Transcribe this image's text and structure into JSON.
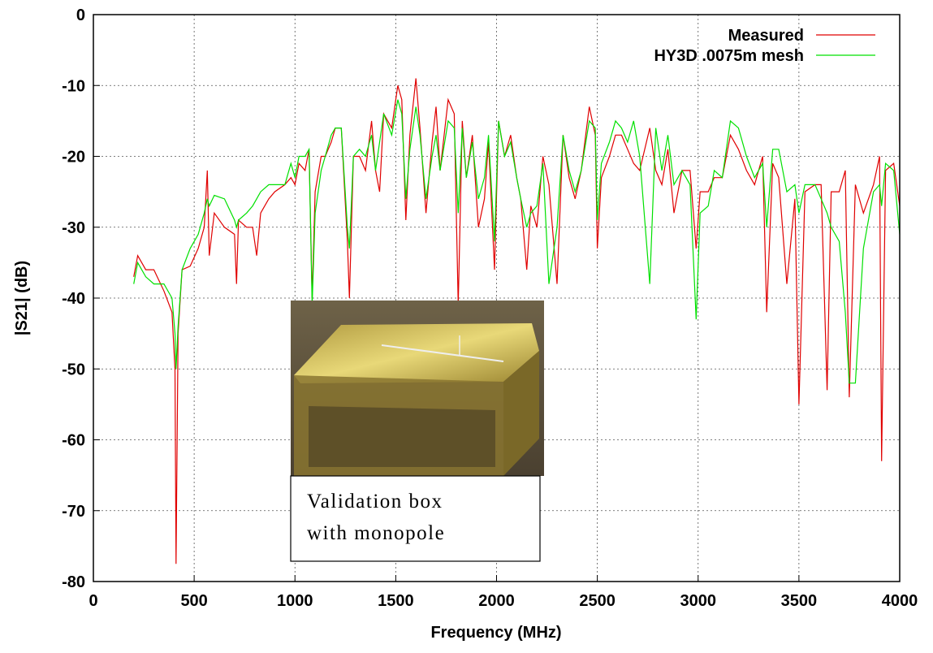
{
  "chart_data": {
    "type": "line",
    "x_label": "Frequency (MHz)",
    "y_label": "|S21| (dB)",
    "xlim": [
      0,
      4000
    ],
    "xticks": [
      0,
      500,
      1000,
      1500,
      2000,
      2500,
      3000,
      3500,
      4000
    ],
    "ylim": [
      -80,
      0
    ],
    "yticks": [
      -80,
      -70,
      -60,
      -50,
      -40,
      -30,
      -20,
      -10,
      0
    ],
    "grid": true,
    "legend": "top-right",
    "x": [
      200,
      220,
      260,
      300,
      350,
      390,
      405,
      410,
      420,
      440,
      480,
      520,
      550,
      565,
      575,
      600,
      650,
      700,
      710,
      720,
      760,
      790,
      810,
      830,
      870,
      900,
      950,
      980,
      1000,
      1020,
      1050,
      1070,
      1085,
      1100,
      1130,
      1150,
      1180,
      1200,
      1230,
      1260,
      1270,
      1290,
      1320,
      1350,
      1380,
      1400,
      1420,
      1440,
      1480,
      1510,
      1530,
      1550,
      1570,
      1600,
      1620,
      1650,
      1680,
      1700,
      1720,
      1760,
      1790,
      1810,
      1830,
      1850,
      1880,
      1910,
      1940,
      1960,
      1990,
      2010,
      2040,
      2070,
      2100,
      2120,
      2150,
      2170,
      2200,
      2230,
      2260,
      2300,
      2330,
      2360,
      2390,
      2420,
      2460,
      2490,
      2500,
      2520,
      2560,
      2590,
      2620,
      2650,
      2680,
      2710,
      2760,
      2790,
      2820,
      2850,
      2880,
      2920,
      2960,
      2990,
      3010,
      3050,
      3080,
      3120,
      3160,
      3200,
      3240,
      3280,
      3320,
      3340,
      3370,
      3400,
      3440,
      3480,
      3500,
      3530,
      3580,
      3610,
      3640,
      3660,
      3700,
      3730,
      3750,
      3780,
      3820,
      3870,
      3900,
      3910,
      3930,
      3970,
      4000
    ],
    "series": [
      {
        "name": "Measured",
        "color": "#e00000",
        "values": [
          -37,
          -34,
          -36,
          -36,
          -39,
          -42,
          -50,
          -77.5,
          -45,
          -36,
          -35.5,
          -33,
          -30,
          -22,
          -34,
          -28,
          -30,
          -31,
          -38,
          -29,
          -30,
          -30,
          -34,
          -28,
          -26,
          -25,
          -24,
          -23,
          -24,
          -21,
          -22,
          -19,
          -40,
          -25,
          -20,
          -20,
          -18,
          -16,
          -16,
          -32,
          -40,
          -20,
          -20,
          -22,
          -15,
          -22,
          -25,
          -14,
          -16,
          -10,
          -12,
          -29,
          -17,
          -9,
          -16,
          -28,
          -18,
          -13,
          -22,
          -12,
          -14,
          -41,
          -15,
          -23,
          -17,
          -30,
          -26,
          -18,
          -36,
          -15,
          -20,
          -17,
          -23,
          -26,
          -36,
          -27,
          -30,
          -20,
          -24,
          -38,
          -17,
          -23,
          -26,
          -22,
          -13,
          -17,
          -33,
          -23,
          -20,
          -17,
          -17,
          -19,
          -21,
          -22,
          -16,
          -22,
          -24,
          -19,
          -28,
          -22,
          -22,
          -33,
          -25,
          -25,
          -23,
          -23,
          -17,
          -19,
          -22,
          -24,
          -20,
          -42,
          -21,
          -23,
          -38,
          -26,
          -55,
          -25,
          -24,
          -24,
          -53,
          -25,
          -25,
          -22,
          -54,
          -24,
          -28,
          -24,
          -20,
          -63,
          -22,
          -21,
          -27
        ]
      },
      {
        "name": "HY3D .0075m mesh",
        "color": "#00e000",
        "values": [
          -38,
          -35,
          -37,
          -38,
          -38,
          -40,
          -45,
          -50,
          -44,
          -36,
          -33,
          -31,
          -28,
          -26,
          -27,
          -25.5,
          -26,
          -29,
          -30,
          -29,
          -28,
          -27,
          -26,
          -25,
          -24,
          -24,
          -24,
          -21,
          -23,
          -20,
          -20,
          -19,
          -41,
          -28,
          -22,
          -20,
          -17,
          -16,
          -16,
          -30,
          -33,
          -20,
          -19,
          -20,
          -17,
          -22,
          -18,
          -14,
          -17,
          -12,
          -14,
          -26,
          -19,
          -13,
          -17,
          -26,
          -20,
          -17,
          -22,
          -15,
          -16,
          -28,
          -16,
          -23,
          -18,
          -26,
          -23,
          -17,
          -32,
          -15,
          -20,
          -18,
          -23,
          -26,
          -30,
          -28,
          -27,
          -21,
          -38,
          -30,
          -17,
          -22,
          -25,
          -22,
          -15,
          -16,
          -29,
          -21,
          -18,
          -15,
          -16,
          -18,
          -15,
          -20,
          -38,
          -16,
          -22,
          -17,
          -24,
          -22,
          -24,
          -43,
          -28,
          -27,
          -22,
          -23,
          -15,
          -16,
          -20,
          -23,
          -21,
          -30,
          -19,
          -19,
          -25,
          -24,
          -28,
          -24,
          -24,
          -26,
          -28,
          -30,
          -32,
          -42,
          -52,
          -52,
          -33,
          -25,
          -24,
          -27,
          -21,
          -22,
          -31
        ]
      }
    ]
  },
  "inset": {
    "caption": [
      "Validation box",
      "with monopole"
    ]
  }
}
